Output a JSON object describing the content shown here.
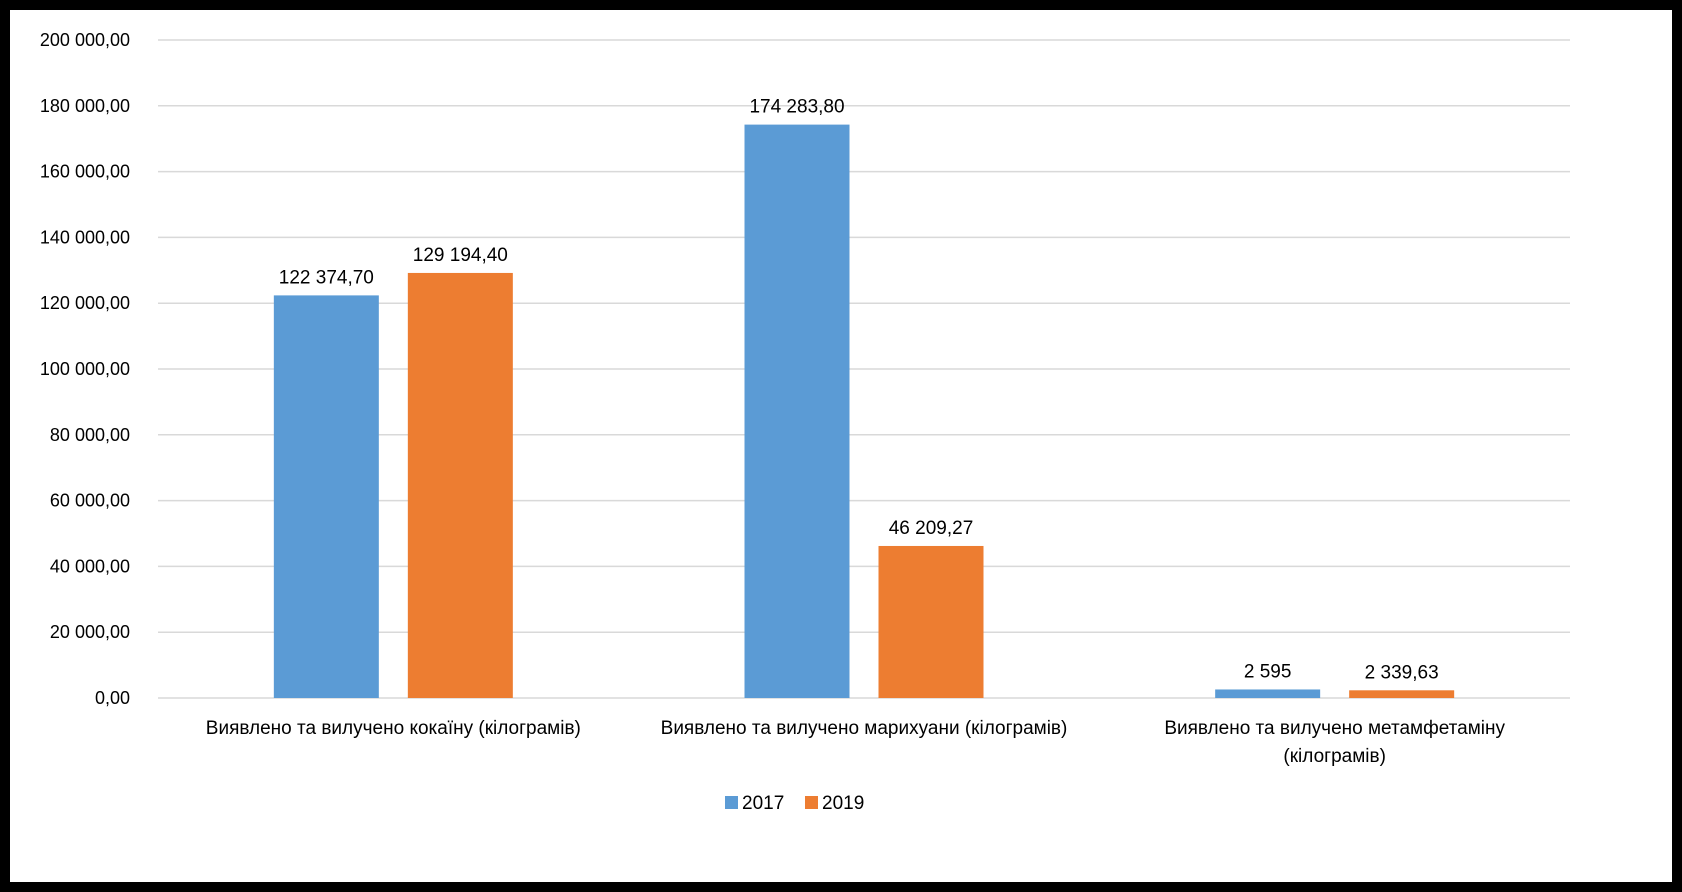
{
  "chart_data": {
    "type": "bar",
    "title": "",
    "xlabel": "",
    "ylabel": "",
    "ylim": [
      0,
      200000
    ],
    "yticks": [
      {
        "value": 0,
        "label": "0,00"
      },
      {
        "value": 20000,
        "label": "20 000,00"
      },
      {
        "value": 40000,
        "label": "40 000,00"
      },
      {
        "value": 60000,
        "label": "60 000,00"
      },
      {
        "value": 80000,
        "label": "80 000,00"
      },
      {
        "value": 100000,
        "label": "100 000,00"
      },
      {
        "value": 120000,
        "label": "120 000,00"
      },
      {
        "value": 140000,
        "label": "140 000,00"
      },
      {
        "value": 160000,
        "label": "160 000,00"
      },
      {
        "value": 180000,
        "label": "180 000,00"
      },
      {
        "value": 200000,
        "label": "200 000,00"
      }
    ],
    "grid": true,
    "legend_position": "bottom",
    "categories": [
      [
        "Виявлено та вилучено кокаїну (кілограмів)"
      ],
      [
        "Виявлено та вилучено марихуани (кілограмів)"
      ],
      [
        "Виявлено та вилучено метамфетаміну",
        "(кілограмів)"
      ]
    ],
    "series": [
      {
        "name": "2017",
        "color": "#5b9bd5",
        "values": [
          122374.7,
          174283.8,
          2595
        ],
        "labels": [
          "122 374,70",
          "174 283,80",
          "2 595"
        ]
      },
      {
        "name": "2019",
        "color": "#ed7d31",
        "values": [
          129194.4,
          46209.27,
          2339.63
        ],
        "labels": [
          "129 194,40",
          "46 209,27",
          "2 339,63"
        ]
      }
    ]
  }
}
